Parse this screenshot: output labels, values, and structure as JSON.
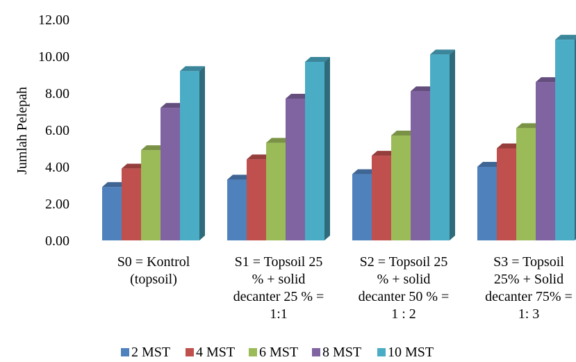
{
  "chart_data": {
    "type": "bar",
    "style": "3d-clustered-column",
    "ylabel": "Jumlah Pelepah",
    "xlabel": "",
    "ylim": [
      0,
      12
    ],
    "yticks": [
      "0.00",
      "2.00",
      "4.00",
      "6.00",
      "8.00",
      "10.00",
      "12.00"
    ],
    "categories": [
      [
        "S0 = Kontrol",
        "(topsoil)"
      ],
      [
        "S1 = Topsoil 25",
        "% + solid",
        "decanter 25 % =",
        "1:1"
      ],
      [
        "S2 = Topsoil 25",
        "% + solid",
        "decanter 50 % =",
        "1 : 2"
      ],
      [
        "S3 = Topsoil",
        "25% + Solid",
        "decanter 75% =",
        "1: 3"
      ]
    ],
    "series": [
      {
        "name": "2 MST",
        "color": "#4F81BD",
        "values": [
          2.9,
          3.3,
          3.6,
          4.0
        ]
      },
      {
        "name": "4 MST",
        "color": "#C0504D",
        "values": [
          3.9,
          4.4,
          4.6,
          5.0
        ]
      },
      {
        "name": "6 MST",
        "color": "#9BBB59",
        "values": [
          4.9,
          5.3,
          5.7,
          6.1
        ]
      },
      {
        "name": "8 MST",
        "color": "#8064A2",
        "values": [
          7.2,
          7.7,
          8.1,
          8.6
        ]
      },
      {
        "name": "10 MST",
        "color": "#4BACC6",
        "values": [
          9.2,
          9.7,
          10.1,
          10.9
        ]
      }
    ],
    "grid": false,
    "legend_position": "bottom"
  }
}
